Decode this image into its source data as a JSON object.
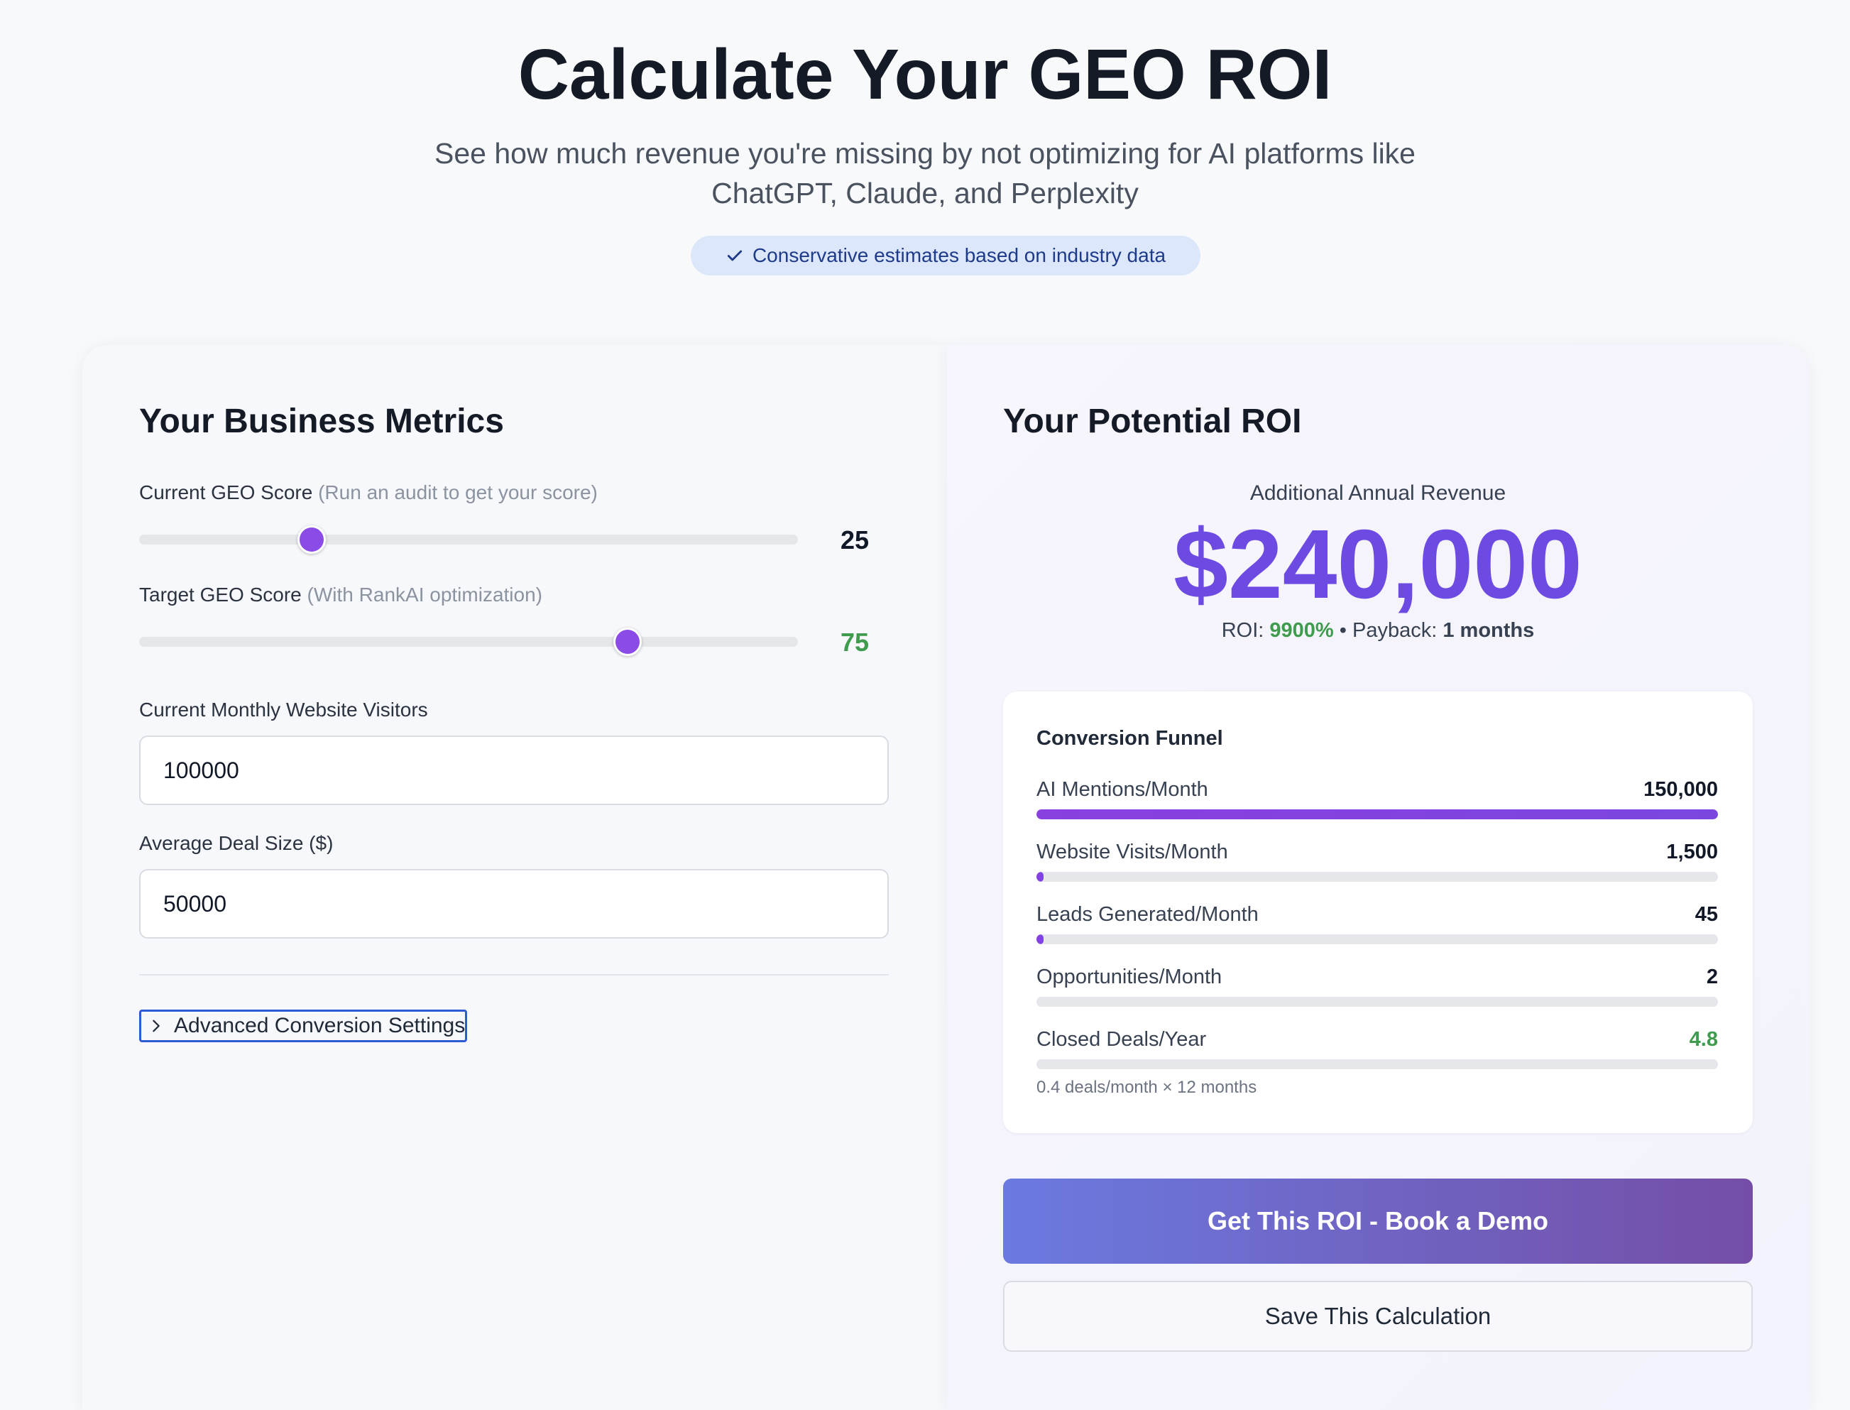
{
  "header": {
    "title": "Calculate Your GEO ROI",
    "subtitle": "See how much revenue you're missing by not optimizing for AI platforms like ChatGPT, Claude, and Perplexity",
    "badge": "Conservative estimates based on industry data",
    "badge_icon": "check-icon"
  },
  "metrics": {
    "title": "Your Business Metrics",
    "current_score": {
      "label": "Current GEO Score",
      "hint": "(Run an audit to get your score)",
      "value": "25",
      "level": 25
    },
    "target_score": {
      "label": "Target GEO Score",
      "hint": "(With RankAI optimization)",
      "value": "75",
      "level": 75,
      "value_color": "#3f9b4e"
    },
    "visitors": {
      "label": "Current Monthly Website Visitors",
      "value": "100000"
    },
    "deal_size": {
      "label": "Average Deal Size ($)",
      "value": "50000"
    },
    "advanced_label": "Advanced Conversion Settings",
    "advanced_icon": "chevron-right-icon"
  },
  "roi": {
    "title": "Your Potential ROI",
    "revenue_label": "Additional Annual Revenue",
    "revenue_amount": "$240,000",
    "roi_prefix": "ROI:",
    "roi_value": "9900%",
    "separator": "•",
    "payback_prefix": "Payback:",
    "payback_value": "1 months",
    "accent_color": "#6d4be2",
    "positive_color": "#3f9b4e"
  },
  "funnel": {
    "title": "Conversion Funnel",
    "rows": [
      {
        "label": "AI Mentions/Month",
        "value": "150,000",
        "fill": 1.0
      },
      {
        "label": "Website Visits/Month",
        "value": "1,500",
        "fill": 0.01
      },
      {
        "label": "Leads Generated/Month",
        "value": "45",
        "fill": 0.0003
      },
      {
        "label": "Opportunities/Month",
        "value": "2",
        "fill": 0.0
      },
      {
        "label": "Closed Deals/Year",
        "value": "4.8",
        "fill": 0.0
      }
    ],
    "note": "0.4 deals/month × 12 months"
  },
  "buttons": {
    "book_demo": "Get This ROI - Book a Demo",
    "save": "Save This Calculation"
  }
}
